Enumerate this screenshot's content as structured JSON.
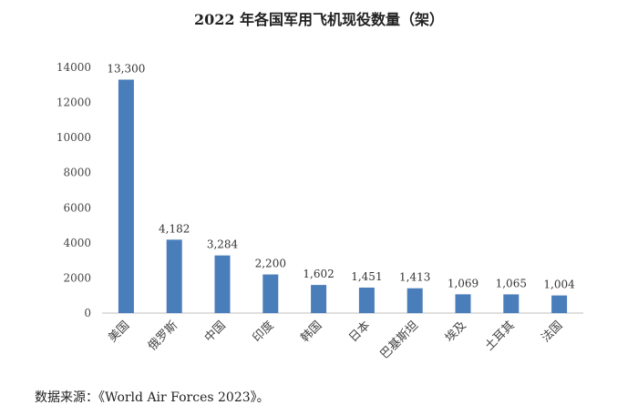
{
  "chart_data": {
    "type": "bar",
    "title": "2022 年各国军用飞机现役数量（架）",
    "categories": [
      "美国",
      "俄罗斯",
      "中国",
      "印度",
      "韩国",
      "日本",
      "巴基斯坦",
      "埃及",
      "土耳其",
      "法国"
    ],
    "values": [
      13300,
      4182,
      3284,
      2200,
      1602,
      1451,
      1413,
      1069,
      1065,
      1004
    ],
    "data_labels": [
      "13,300",
      "4,182",
      "3,284",
      "2,200",
      "1,602",
      "1,451",
      "1,413",
      "1,069",
      "1,065",
      "1,004"
    ],
    "yticks": [
      "0",
      "2000",
      "4000",
      "6000",
      "8000",
      "10000",
      "12000",
      "14000"
    ],
    "ylim": [
      0,
      14000
    ],
    "xlabel": "",
    "ylabel": "",
    "grid": false,
    "legend": "none",
    "bar_color": "#4a7ebb"
  },
  "source": "数据来源：《World Air Forces 2023》。"
}
